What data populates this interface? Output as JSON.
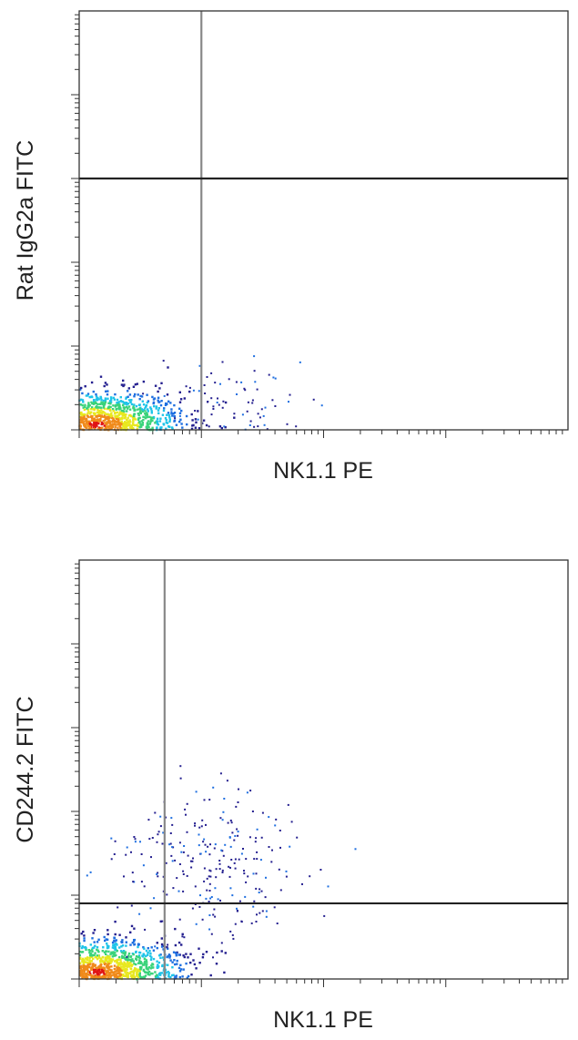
{
  "chart_data": [
    {
      "type": "scatter",
      "subtype": "flow-cytometry-density-dot-plot",
      "xlabel": "NK1.1 PE",
      "ylabel": "Rat IgG2a FITC",
      "x_scale": "log",
      "y_scale": "log",
      "xlim": [
        1,
        10000
      ],
      "ylim": [
        1,
        100000
      ],
      "quadrant_gate": {
        "x": 10,
        "y": 1000
      },
      "tick_labels_shown": false,
      "populations": [
        {
          "name": "",
          "x_center": 1.4,
          "y_center": 1.15,
          "x_spread": 0.35,
          "y_spread": 0.2,
          "count": 1800,
          "density_colored": true
        },
        {
          "name": "",
          "x_center": 18,
          "y_center": 1.5,
          "x_spread": 0.28,
          "y_spread": 0.35,
          "count": 110,
          "density_colored": false
        }
      ]
    },
    {
      "type": "scatter",
      "subtype": "flow-cytometry-density-dot-plot",
      "xlabel": "NK1.1 PE",
      "ylabel": "CD244.2 FITC",
      "x_scale": "log",
      "y_scale": "log",
      "xlim": [
        1,
        10000
      ],
      "ylim": [
        1,
        100000
      ],
      "quadrant_gate": {
        "x": 5,
        "y": 8
      },
      "tick_labels_shown": false,
      "populations": [
        {
          "name": "",
          "x_center": 1.4,
          "y_center": 1.2,
          "x_spread": 0.35,
          "y_spread": 0.2,
          "count": 1800,
          "density_colored": true
        },
        {
          "name": "",
          "x_center": 12,
          "y_center": 20,
          "x_spread": 0.4,
          "y_spread": 0.45,
          "count": 260,
          "density_colored": false
        }
      ]
    }
  ],
  "colors": {
    "frame": "#333333",
    "gate_line_h": "#222222",
    "gate_line_v": "#888888",
    "density_scale": [
      "#241f8f",
      "#1f6fe0",
      "#1fc4e8",
      "#3ad37a",
      "#e8e81f",
      "#f08a1a",
      "#e01414"
    ]
  }
}
